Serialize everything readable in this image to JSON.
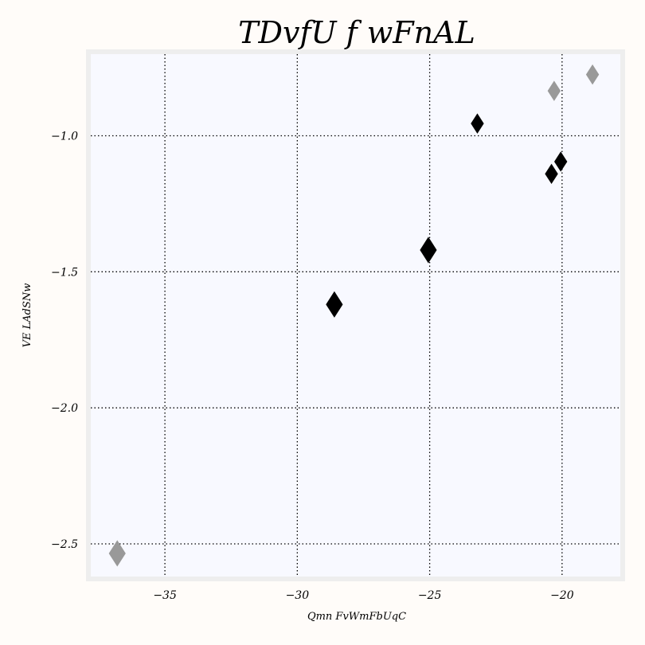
{
  "chart_data": {
    "type": "scatter",
    "title": "TDvfU f wFnAL",
    "xlabel": "Qmn FvWmFbUqC",
    "ylabel": "VE LAdSNw",
    "xlim": [
      -37.8,
      -17.8
    ],
    "ylim": [
      -2.62,
      -0.7
    ],
    "xticks": [
      -35,
      -30,
      -25,
      -20
    ],
    "yticks": [
      -2.5,
      -2.0,
      -1.5,
      -1.0
    ],
    "xtick_labels": [
      "−35",
      "−30",
      "−25",
      "−20"
    ],
    "ytick_labels": [
      "−2.5",
      "−2.0",
      "−1.5",
      "−1.0"
    ],
    "grid": true,
    "marker": "diamond",
    "colors": {
      "plot_background": "#f8f9ff",
      "axes_frame": "#eeeeee",
      "grid": "#000000",
      "series_dark": "#000000",
      "series_gray": "#999999"
    },
    "points": [
      {
        "x": -36.8,
        "y": -2.535,
        "size": 1.2,
        "color": "#999999"
      },
      {
        "x": -28.6,
        "y": -1.62,
        "size": 1.2,
        "color": "#000000"
      },
      {
        "x": -25.05,
        "y": -1.42,
        "size": 1.2,
        "color": "#000000"
      },
      {
        "x": -23.2,
        "y": -0.955,
        "size": 0.9,
        "color": "#000000"
      },
      {
        "x": -20.4,
        "y": -1.14,
        "size": 0.9,
        "color": "#000000"
      },
      {
        "x": -20.05,
        "y": -1.095,
        "size": 0.9,
        "color": "#000000"
      },
      {
        "x": -20.3,
        "y": -0.835,
        "size": 0.9,
        "color": "#999999"
      },
      {
        "x": -18.85,
        "y": -0.775,
        "size": 0.9,
        "color": "#999999"
      }
    ]
  }
}
